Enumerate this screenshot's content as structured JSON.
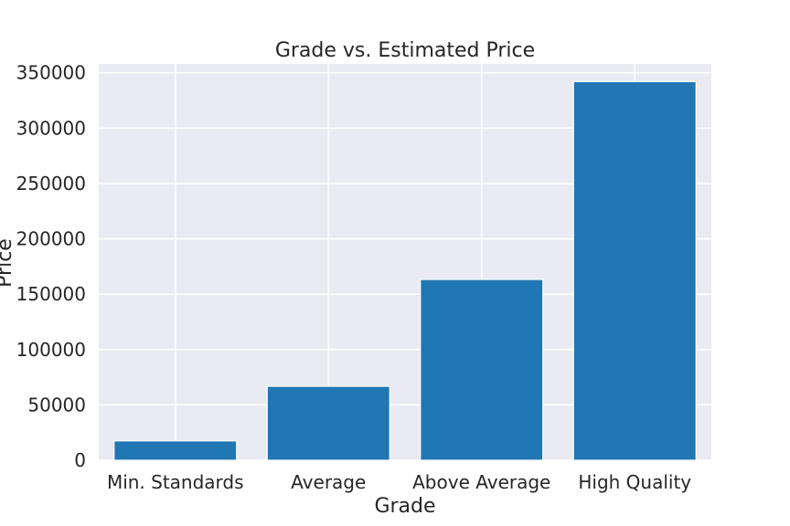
{
  "chart_data": {
    "type": "bar",
    "title": "Grade vs. Estimated Price",
    "xlabel": "Grade",
    "ylabel": "Price",
    "categories": [
      "Min. Standards",
      "Average",
      "Above Average",
      "High Quality"
    ],
    "values": [
      17500,
      66800,
      163300,
      342000
    ],
    "ylim": [
      0,
      358000
    ],
    "yticks": [
      0,
      50000,
      100000,
      150000,
      200000,
      250000,
      300000,
      350000
    ],
    "ytick_labels": [
      "0",
      "50000",
      "100000",
      "150000",
      "200000",
      "250000",
      "300000",
      "350000"
    ],
    "grid": true,
    "legend": "none",
    "colors": {
      "bar": "#2077b4",
      "plot_background": "#eaeaf2",
      "grid": "#ffffff",
      "text": "#262626"
    }
  }
}
